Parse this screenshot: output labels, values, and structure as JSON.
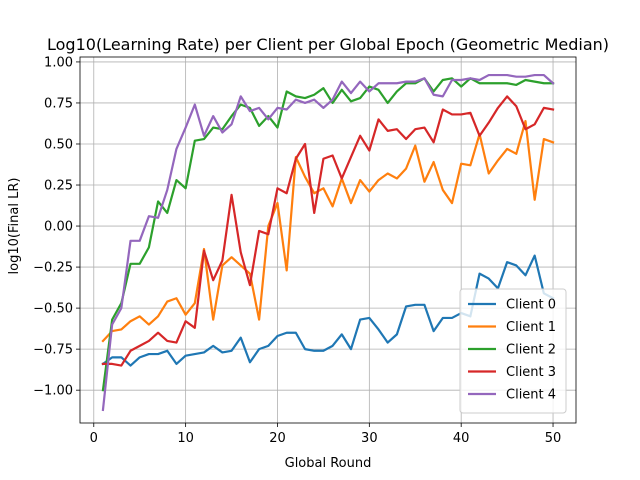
{
  "chart_data": {
    "type": "line",
    "title": "Log10(Learning Rate) per Client per Global Epoch (Geometric Median)",
    "xlabel": "Global Round",
    "ylabel": "log10(Final LR)",
    "xlim": [
      -1.5,
      52.5
    ],
    "ylim": [
      -1.2,
      1.03
    ],
    "xticks": [
      0,
      10,
      20,
      30,
      40,
      50
    ],
    "xtick_labels": [
      "0",
      "10",
      "20",
      "30",
      "40",
      "50"
    ],
    "yticks": [
      -1.0,
      -0.75,
      -0.5,
      -0.25,
      0.0,
      0.25,
      0.5,
      0.75,
      1.0
    ],
    "ytick_labels": [
      "−1.00",
      "−0.75",
      "−0.50",
      "−0.25",
      "0.00",
      "0.25",
      "0.50",
      "0.75",
      "1.00"
    ],
    "grid": true,
    "legend_position": "bottom-right",
    "x": [
      1,
      2,
      3,
      4,
      5,
      6,
      7,
      8,
      9,
      10,
      11,
      12,
      13,
      14,
      15,
      16,
      17,
      18,
      19,
      20,
      21,
      22,
      23,
      24,
      25,
      26,
      27,
      28,
      29,
      30,
      31,
      32,
      33,
      34,
      35,
      36,
      37,
      38,
      39,
      40,
      41,
      42,
      43,
      44,
      45,
      46,
      47,
      48,
      49,
      50
    ],
    "series": [
      {
        "name": "Client 0",
        "color": "#1f77b4",
        "values": [
          -0.84,
          -0.8,
          -0.8,
          -0.85,
          -0.8,
          -0.78,
          -0.78,
          -0.76,
          -0.84,
          -0.79,
          -0.78,
          -0.77,
          -0.73,
          -0.77,
          -0.76,
          -0.68,
          -0.83,
          -0.75,
          -0.73,
          -0.67,
          -0.65,
          -0.65,
          -0.75,
          -0.76,
          -0.76,
          -0.73,
          -0.66,
          -0.75,
          -0.57,
          -0.56,
          -0.63,
          -0.71,
          -0.66,
          -0.49,
          -0.48,
          -0.48,
          -0.64,
          -0.56,
          -0.56,
          -0.53,
          -0.55,
          -0.29,
          -0.32,
          -0.38,
          -0.22,
          -0.24,
          -0.3,
          -0.18,
          -0.41,
          -0.44
        ]
      },
      {
        "name": "Client 1",
        "color": "#ff7f0e",
        "values": [
          -0.7,
          -0.64,
          -0.63,
          -0.58,
          -0.55,
          -0.6,
          -0.55,
          -0.46,
          -0.44,
          -0.54,
          -0.47,
          -0.14,
          -0.57,
          -0.24,
          -0.19,
          -0.24,
          -0.29,
          -0.57,
          0.0,
          0.14,
          -0.27,
          0.42,
          0.3,
          0.2,
          0.23,
          0.12,
          0.29,
          0.14,
          0.28,
          0.21,
          0.28,
          0.32,
          0.29,
          0.35,
          0.49,
          0.27,
          0.39,
          0.22,
          0.14,
          0.38,
          0.37,
          0.56,
          0.32,
          0.4,
          0.47,
          0.44,
          0.64,
          0.16,
          0.53,
          0.51
        ]
      },
      {
        "name": "Client 2",
        "color": "#2ca02c",
        "values": [
          -1.0,
          -0.57,
          -0.47,
          -0.23,
          -0.23,
          -0.13,
          0.15,
          0.08,
          0.28,
          0.23,
          0.52,
          0.53,
          0.6,
          0.59,
          0.67,
          0.74,
          0.72,
          0.61,
          0.67,
          0.6,
          0.82,
          0.79,
          0.78,
          0.8,
          0.84,
          0.75,
          0.83,
          0.76,
          0.78,
          0.85,
          0.83,
          0.75,
          0.82,
          0.87,
          0.87,
          0.9,
          0.82,
          0.89,
          0.9,
          0.85,
          0.9,
          0.87,
          0.87,
          0.87,
          0.87,
          0.86,
          0.89,
          0.88,
          0.87,
          0.87
        ]
      },
      {
        "name": "Client 3",
        "color": "#d62728",
        "values": [
          -0.84,
          -0.84,
          -0.85,
          -0.76,
          -0.73,
          -0.7,
          -0.65,
          -0.7,
          -0.71,
          -0.58,
          -0.62,
          -0.15,
          -0.33,
          -0.21,
          0.19,
          -0.16,
          -0.36,
          -0.03,
          -0.05,
          0.23,
          0.2,
          0.41,
          0.5,
          0.08,
          0.41,
          0.43,
          0.29,
          0.42,
          0.55,
          0.46,
          0.65,
          0.58,
          0.59,
          0.53,
          0.59,
          0.6,
          0.51,
          0.71,
          0.68,
          0.68,
          0.69,
          0.55,
          0.63,
          0.72,
          0.79,
          0.73,
          0.59,
          0.62,
          0.72,
          0.71
        ]
      },
      {
        "name": "Client 4",
        "color": "#9467bd",
        "values": [
          -1.12,
          -0.6,
          -0.5,
          -0.09,
          -0.09,
          0.06,
          0.05,
          0.22,
          0.47,
          0.6,
          0.74,
          0.55,
          0.67,
          0.57,
          0.62,
          0.79,
          0.7,
          0.72,
          0.65,
          0.72,
          0.71,
          0.77,
          0.75,
          0.77,
          0.72,
          0.77,
          0.88,
          0.81,
          0.88,
          0.82,
          0.87,
          0.87,
          0.87,
          0.88,
          0.88,
          0.9,
          0.8,
          0.79,
          0.89,
          0.89,
          0.9,
          0.89,
          0.92,
          0.92,
          0.92,
          0.91,
          0.91,
          0.92,
          0.92,
          0.87
        ]
      }
    ]
  }
}
